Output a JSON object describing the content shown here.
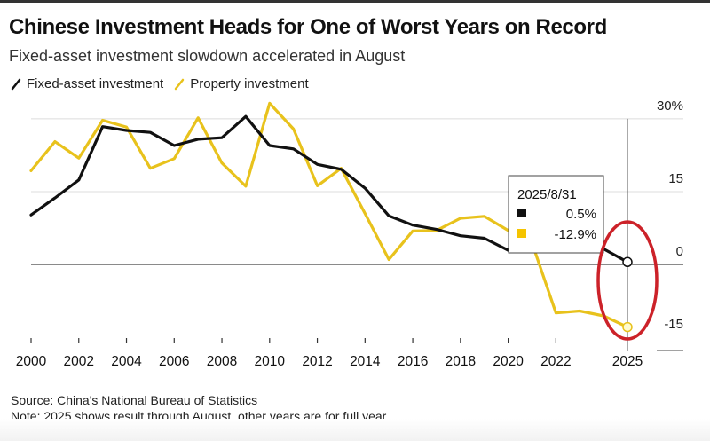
{
  "chart_data": {
    "type": "line",
    "title": "Chinese Investment Heads for One of Worst Years on Record",
    "subtitle": "Fixed-asset investment slowdown accelerated in August",
    "xlabel": "",
    "ylabel": "",
    "x": [
      2000,
      2001,
      2002,
      2003,
      2004,
      2005,
      2006,
      2007,
      2008,
      2009,
      2010,
      2011,
      2012,
      2013,
      2014,
      2015,
      2016,
      2017,
      2018,
      2019,
      2020,
      2021,
      2022,
      2023,
      2024,
      2025
    ],
    "xticks": [
      "2000",
      "2002",
      "2004",
      "2006",
      "2008",
      "2010",
      "2012",
      "2014",
      "2016",
      "2018",
      "2020",
      "2022",
      "2025"
    ],
    "xtick_values": [
      2000,
      2002,
      2004,
      2006,
      2008,
      2010,
      2012,
      2014,
      2016,
      2018,
      2020,
      2022,
      2025
    ],
    "yticks": [
      "30%",
      "15",
      "0",
      "-15"
    ],
    "ytick_values": [
      30,
      15,
      0,
      -15
    ],
    "ylim": [
      -17,
      32
    ],
    "xlim": [
      2000,
      2025
    ],
    "grid": true,
    "legend_position": "top-left",
    "series": [
      {
        "name": "Fixed-asset investment",
        "color": "#111111",
        "values": [
          10.2,
          13.7,
          17.4,
          28.4,
          27.6,
          27.2,
          24.5,
          25.8,
          26.1,
          30.5,
          24.5,
          23.8,
          20.6,
          19.6,
          15.7,
          10.0,
          8.1,
          7.2,
          5.9,
          5.4,
          2.9,
          4.9,
          5.1,
          3.0,
          3.2,
          0.5
        ]
      },
      {
        "name": "Property investment",
        "color": "#e8c21c",
        "values": [
          19.3,
          25.3,
          21.9,
          29.7,
          28.3,
          19.8,
          21.8,
          30.2,
          20.9,
          16.1,
          33.2,
          27.9,
          16.2,
          19.8,
          10.5,
          1.0,
          6.9,
          7.0,
          9.5,
          9.9,
          7.0,
          4.4,
          -10.0,
          -9.6,
          -10.6,
          -12.9
        ]
      }
    ],
    "tooltip": {
      "date": "2025/8/31",
      "rows": [
        {
          "series": "Fixed-asset investment",
          "color": "#111111",
          "value": "0.5%"
        },
        {
          "series": "Property investment",
          "color": "#f5c400",
          "value": "-12.9%"
        }
      ]
    },
    "annotation": {
      "type": "ellipse",
      "color": "#cc2229",
      "target": "2025"
    },
    "source": "Source: China's National Bureau of Statistics",
    "note": "Note: 2025 shows result through August, other years are for full year"
  }
}
